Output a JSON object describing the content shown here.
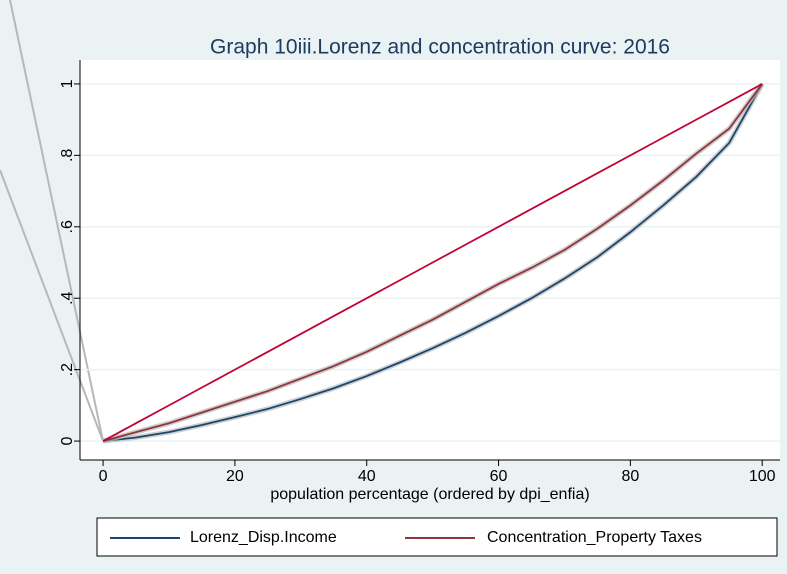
{
  "chart_data": {
    "type": "line",
    "title": "Graph 10iii.Lorenz and concentration curve: 2016",
    "x_label": "population percentage (ordered by dpi_enfia)",
    "x": [
      0,
      5,
      10,
      15,
      20,
      25,
      30,
      35,
      40,
      45,
      50,
      55,
      60,
      65,
      70,
      75,
      80,
      85,
      90,
      95,
      100
    ],
    "series": [
      {
        "name": "Lorenz_Disp.Income",
        "color": "#1a476f",
        "values": [
          0,
          0.01,
          0.025,
          0.045,
          0.067,
          0.09,
          0.118,
          0.148,
          0.182,
          0.22,
          0.26,
          0.303,
          0.35,
          0.4,
          0.455,
          0.515,
          0.585,
          0.66,
          0.74,
          0.835,
          1
        ]
      },
      {
        "name": "Concentration_Property Taxes",
        "color": "#90353b",
        "values": [
          0,
          0.025,
          0.05,
          0.08,
          0.11,
          0.14,
          0.175,
          0.21,
          0.25,
          0.295,
          0.34,
          0.39,
          0.44,
          0.485,
          0.535,
          0.595,
          0.66,
          0.73,
          0.805,
          0.875,
          1
        ]
      },
      {
        "color": "#c10534",
        "values": [
          0,
          0.05,
          0.1,
          0.15,
          0.2,
          0.25,
          0.3,
          0.35,
          0.4,
          0.45,
          0.5,
          0.55,
          0.6,
          0.65,
          0.7,
          0.75,
          0.8,
          0.85,
          0.9,
          0.95,
          1
        ]
      }
    ],
    "xlim": [
      -3.5,
      102.7
    ],
    "ylim": [
      -0.053,
      1.067
    ],
    "xticks": [
      0,
      20,
      40,
      60,
      80,
      100
    ],
    "yticks": [
      0,
      {
        "value": 0.2,
        "label": ".2"
      },
      {
        "value": 0.4,
        "label": ".4"
      },
      {
        "value": 0.6,
        "label": ".6"
      },
      {
        "value": 0.8,
        "label": ".8"
      },
      1
    ],
    "grid": true,
    "legend": "bottom"
  }
}
